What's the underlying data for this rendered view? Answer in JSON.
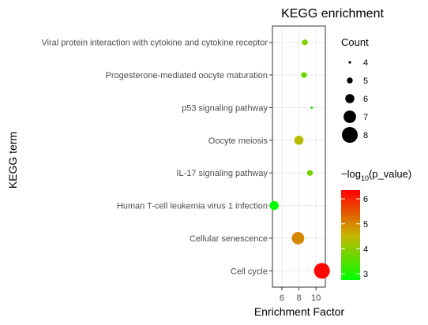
{
  "chart_data": {
    "type": "scatter",
    "title": "KEGG enrichment",
    "xlabel": "Enrichment Factor",
    "ylabel": "KEGG term",
    "xlim": [
      4.9,
      11.1
    ],
    "x_ticks": [
      6,
      8,
      10
    ],
    "categories": [
      "Cell cycle",
      "Cellular senescence",
      "Human T-cell leukemia virus 1 infection",
      "IL-17 signaling pathway",
      "Oocyte meiosis",
      "p53 signaling pathway",
      "Progesterone-mediated oocyte maturation",
      "Viral protein interaction with cytokine and cytokine receptor"
    ],
    "points": [
      {
        "term": "Cell cycle",
        "x": 10.7,
        "count": 8,
        "p": 6.3
      },
      {
        "term": "Cellular senescence",
        "x": 7.9,
        "count": 7,
        "p": 5.0
      },
      {
        "term": "Human T-cell leukemia virus 1 infection",
        "x": 5.1,
        "count": 6,
        "p": 2.8
      },
      {
        "term": "IL-17 signaling pathway",
        "x": 9.3,
        "count": 5,
        "p": 3.8
      },
      {
        "term": "Oocyte meiosis",
        "x": 8.0,
        "count": 6,
        "p": 4.4
      },
      {
        "term": "p53 signaling pathway",
        "x": 9.5,
        "count": 4,
        "p": 3.2
      },
      {
        "term": "Progesterone-mediated oocyte maturation",
        "x": 8.6,
        "count": 5,
        "p": 3.7
      },
      {
        "term": "Viral protein interaction with cytokine and cytokine receptor",
        "x": 8.7,
        "count": 5,
        "p": 3.9
      }
    ],
    "size_legend": {
      "title": "Count",
      "values": [
        4,
        5,
        6,
        7,
        8
      ]
    },
    "color_legend": {
      "title_prefix": "−log",
      "title_subscript": "10",
      "title_suffix": "(p_value)",
      "ticks": [
        3,
        4,
        5,
        6
      ],
      "range": [
        2.75,
        6.35
      ],
      "low_color": "#00ff00",
      "high_color": "#ff0000"
    },
    "grid": true,
    "legend_position": "right"
  }
}
